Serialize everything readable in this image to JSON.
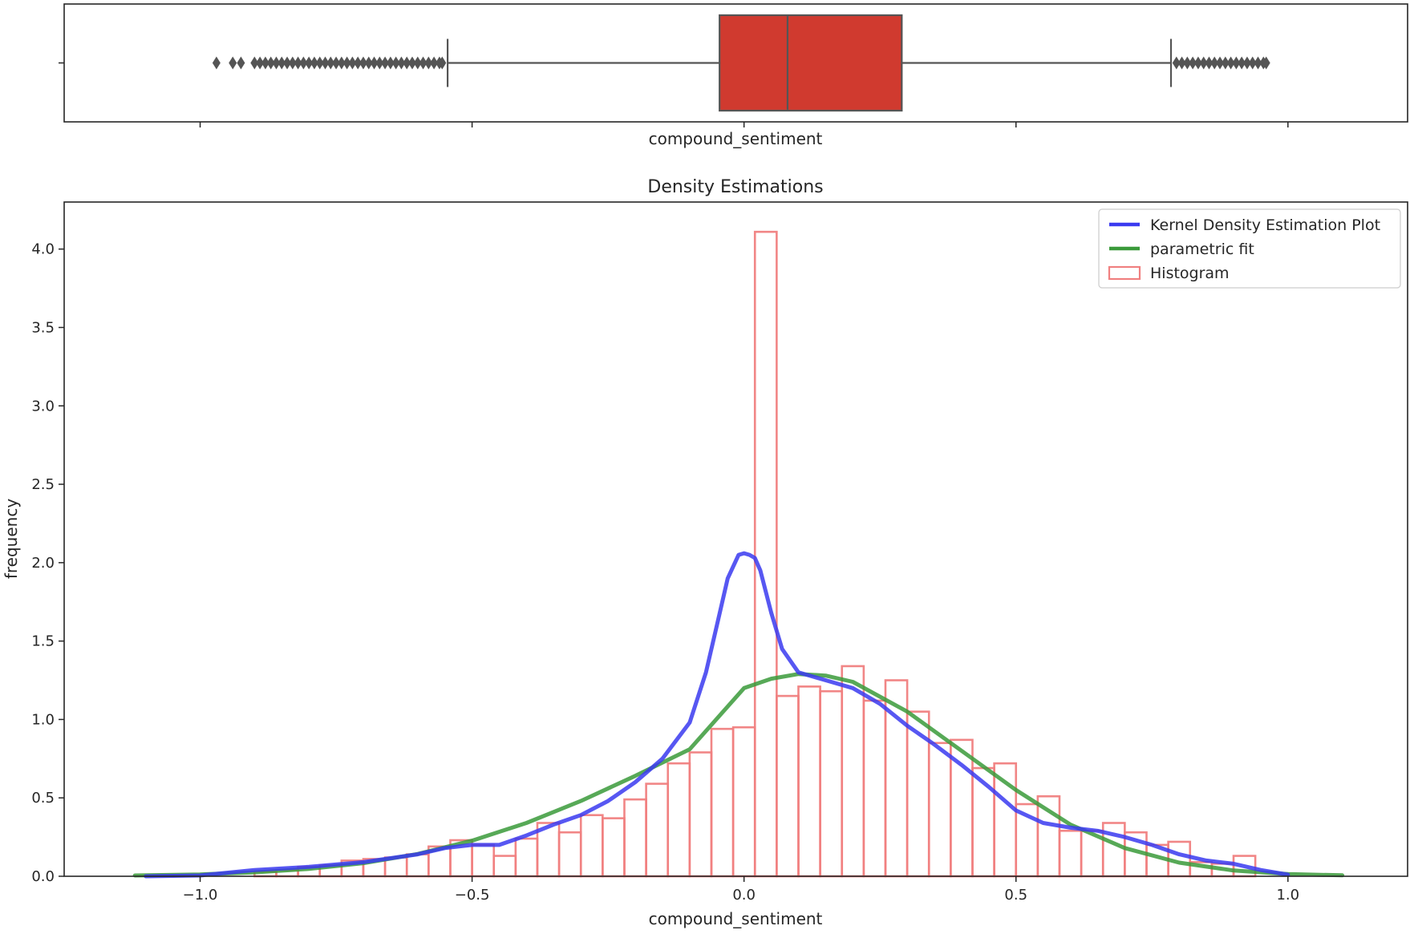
{
  "chart_data": [
    {
      "type": "box",
      "panel": "top",
      "xlabel": "compound_sentiment",
      "xlim": [
        -1.25,
        1.22
      ],
      "box": {
        "q1": -0.045,
        "median": 0.08,
        "q3": 0.29,
        "whisker_low": -0.545,
        "whisker_high": 0.785,
        "color": "#d03a2f"
      },
      "outliers": [
        -0.97,
        -0.94,
        -0.925,
        -0.9,
        -0.89,
        -0.88,
        -0.87,
        -0.86,
        -0.85,
        -0.84,
        -0.83,
        -0.82,
        -0.81,
        -0.8,
        -0.79,
        -0.78,
        -0.77,
        -0.76,
        -0.75,
        -0.74,
        -0.73,
        -0.72,
        -0.71,
        -0.7,
        -0.69,
        -0.68,
        -0.67,
        -0.66,
        -0.65,
        -0.64,
        -0.63,
        -0.62,
        -0.61,
        -0.6,
        -0.59,
        -0.58,
        -0.57,
        -0.56,
        -0.555,
        0.795,
        0.805,
        0.815,
        0.825,
        0.835,
        0.845,
        0.855,
        0.865,
        0.875,
        0.885,
        0.895,
        0.905,
        0.915,
        0.925,
        0.935,
        0.945,
        0.955,
        0.96
      ]
    },
    {
      "type": "line",
      "panel": "bottom",
      "title": "Density Estimations",
      "xlabel": "compound_sentiment",
      "ylabel": "frequency",
      "xlim": [
        -1.25,
        1.22
      ],
      "ylim": [
        0,
        4.3
      ],
      "xticks": [
        -1.0,
        -0.5,
        0.0,
        0.5,
        1.0
      ],
      "xtick_labels": [
        "−1.0",
        "−0.5",
        "0.0",
        "0.5",
        "1.0"
      ],
      "yticks": [
        0.0,
        0.5,
        1.0,
        1.5,
        2.0,
        2.5,
        3.0,
        3.5,
        4.0
      ],
      "ytick_labels": [
        "0.0",
        "0.5",
        "1.0",
        "1.5",
        "2.0",
        "2.5",
        "3.0",
        "3.5",
        "4.0"
      ],
      "legend_position": "top-right",
      "histogram": {
        "name": "Histogram",
        "color": "#f08080",
        "bin_edges": [
          -0.9,
          -0.86,
          -0.82,
          -0.78,
          -0.74,
          -0.7,
          -0.66,
          -0.62,
          -0.58,
          -0.54,
          -0.5,
          -0.46,
          -0.42,
          -0.38,
          -0.34,
          -0.3,
          -0.26,
          -0.22,
          -0.18,
          -0.14,
          -0.1,
          -0.06,
          -0.02,
          0.02,
          0.06,
          0.1,
          0.14,
          0.18,
          0.22,
          0.26,
          0.3,
          0.34,
          0.38,
          0.42,
          0.46,
          0.5,
          0.54,
          0.58,
          0.62,
          0.66,
          0.7,
          0.74,
          0.78,
          0.82,
          0.86,
          0.9,
          0.94
        ],
        "values": [
          0.03,
          0.04,
          0.06,
          0.07,
          0.1,
          0.11,
          0.12,
          0.14,
          0.19,
          0.23,
          0.2,
          0.13,
          0.24,
          0.34,
          0.28,
          0.39,
          0.37,
          0.49,
          0.59,
          0.72,
          0.79,
          0.94,
          0.95,
          4.11,
          1.15,
          1.21,
          1.18,
          1.34,
          1.12,
          1.25,
          1.05,
          0.85,
          0.87,
          0.69,
          0.72,
          0.46,
          0.51,
          0.29,
          0.29,
          0.34,
          0.28,
          0.2,
          0.22,
          0.09,
          0.08,
          0.13
        ]
      },
      "series": [
        {
          "name": "Kernel Density Estimation Plot",
          "color": "#3a3af0",
          "x": [
            -1.1,
            -1.0,
            -0.9,
            -0.8,
            -0.7,
            -0.6,
            -0.55,
            -0.5,
            -0.45,
            -0.4,
            -0.35,
            -0.3,
            -0.25,
            -0.2,
            -0.15,
            -0.1,
            -0.07,
            -0.05,
            -0.03,
            -0.01,
            0.0,
            0.01,
            0.02,
            0.03,
            0.05,
            0.07,
            0.1,
            0.15,
            0.2,
            0.25,
            0.3,
            0.35,
            0.4,
            0.45,
            0.5,
            0.55,
            0.6,
            0.65,
            0.7,
            0.75,
            0.8,
            0.85,
            0.9,
            0.95,
            1.0
          ],
          "y": [
            0.0,
            0.005,
            0.04,
            0.06,
            0.09,
            0.14,
            0.18,
            0.2,
            0.2,
            0.26,
            0.33,
            0.39,
            0.48,
            0.6,
            0.75,
            0.98,
            1.3,
            1.6,
            1.9,
            2.05,
            2.06,
            2.05,
            2.03,
            1.95,
            1.68,
            1.45,
            1.3,
            1.25,
            1.2,
            1.1,
            0.96,
            0.84,
            0.71,
            0.57,
            0.42,
            0.34,
            0.31,
            0.29,
            0.25,
            0.2,
            0.14,
            0.1,
            0.08,
            0.04,
            0.01
          ]
        },
        {
          "name": "parametric fit",
          "color": "#3a9a3a",
          "x": [
            -1.12,
            -1.0,
            -0.9,
            -0.8,
            -0.7,
            -0.6,
            -0.5,
            -0.4,
            -0.3,
            -0.2,
            -0.1,
            0.0,
            0.05,
            0.1,
            0.15,
            0.2,
            0.3,
            0.4,
            0.5,
            0.6,
            0.7,
            0.8,
            0.9,
            1.0,
            1.1
          ],
          "y": [
            0.005,
            0.012,
            0.025,
            0.047,
            0.084,
            0.142,
            0.227,
            0.34,
            0.48,
            0.64,
            0.81,
            1.2,
            1.26,
            1.29,
            1.28,
            1.24,
            1.05,
            0.8,
            0.55,
            0.33,
            0.18,
            0.087,
            0.037,
            0.014,
            0.006
          ]
        }
      ]
    }
  ]
}
